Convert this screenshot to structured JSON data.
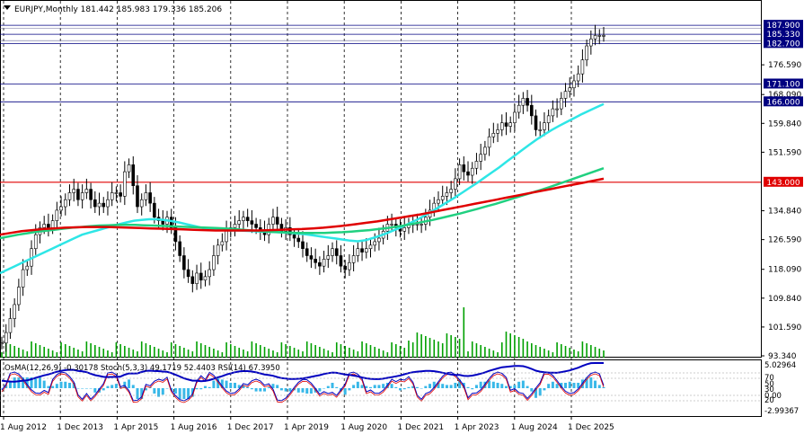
{
  "header": {
    "symbol": "EURJPY,Monthly",
    "ohlc": "181.442 185.983 179.336 185.206"
  },
  "sub_header": {
    "indicators": "OsMA(12,26,9) -0.30178   Stoch(5,3,3) 49.1719 52.4403   RSI(14) 67.3950"
  },
  "colors": {
    "background": "#ffffff",
    "candles": "#000000",
    "volume": "#00a000",
    "ema_fast": "#2ee6e6",
    "ema_mid": "#20d080",
    "ema_slow": "#e00000",
    "level_line": "#000080",
    "red_level": "#e00000",
    "osma": "#38b8e8",
    "stoch_main": "#0000c0",
    "stoch_signal": "#e00000",
    "rsi": "#8000c0"
  },
  "chart_data": {
    "type": "candlestick",
    "title": "EURJPY,Monthly",
    "ylim": [
      93.34,
      190.5
    ],
    "price_ticks": [
      "187.900",
      "185.330",
      "182.700",
      "176.590",
      "171.100",
      "168.090",
      "166.000",
      "159.840",
      "151.590",
      "143.000",
      "134.840",
      "126.590",
      "118.090",
      "109.840",
      "101.590",
      "93.340"
    ],
    "x_ticks": [
      "1 Aug 2012",
      "1 Dec 2013",
      "1 Apr 2015",
      "1 Aug 2016",
      "1 Dec 2017",
      "1 Apr 2019",
      "1 Aug 2020",
      "1 Dec 2021",
      "1 Apr 2023",
      "1 Aug 2024",
      "1 Dec 2025"
    ],
    "horizontal_levels": [
      {
        "label": "187.900",
        "value": 187.9
      },
      {
        "label": "185.330",
        "value": 185.33
      },
      {
        "label": "182.700",
        "value": 182.7
      },
      {
        "label": "171.100",
        "value": 171.1
      },
      {
        "label": "166.000",
        "value": 166.0
      },
      {
        "label": "143.000",
        "value": 143.0,
        "highlight": true
      }
    ],
    "close_series": [
      97,
      100,
      104,
      108,
      113,
      118,
      119,
      124,
      128,
      130,
      131,
      130,
      132,
      135,
      136,
      138,
      140,
      141,
      138,
      140,
      141,
      138,
      136,
      137,
      136,
      138,
      140,
      140,
      139,
      146,
      148,
      142,
      136,
      138,
      140,
      137,
      133,
      132,
      131,
      133,
      130,
      126,
      122,
      118,
      116,
      114,
      117,
      115,
      116,
      118,
      122,
      125,
      126,
      129,
      130,
      131,
      132,
      133,
      132,
      131,
      130,
      129,
      128,
      131,
      133,
      131,
      129,
      130,
      128,
      127,
      126,
      124,
      122,
      121,
      120,
      119,
      121,
      122,
      124,
      122,
      119,
      118,
      120,
      122,
      124,
      123,
      124,
      125,
      126,
      127,
      129,
      131,
      131,
      130,
      129,
      130,
      131,
      131,
      131,
      131,
      133,
      135,
      137,
      138,
      139,
      140,
      141,
      144,
      148,
      146,
      145,
      147,
      149,
      151,
      153,
      156,
      157,
      158,
      160,
      159,
      160,
      163,
      165,
      167,
      165,
      162,
      158,
      158,
      160,
      162,
      164,
      164,
      167,
      169,
      170,
      172,
      174,
      178,
      182,
      184,
      185,
      185,
      185
    ],
    "series": [
      {
        "name": "EMA fast",
        "values": [
          117,
          118,
          119,
          120,
          121,
          122,
          123,
          124,
          125,
          126,
          127,
          128,
          128.6,
          129.2,
          129.8,
          130.4,
          131,
          131.5,
          132,
          132.2,
          132.4,
          132.4,
          132.2,
          131.9,
          131.5,
          131,
          130.5,
          130,
          129.6,
          129.4,
          129.3,
          129.2,
          129.2,
          129.1,
          129,
          128.9,
          128.8,
          128.7,
          128.6,
          128.5,
          128.3,
          128.1,
          127.8,
          127.5,
          127.2,
          126.9,
          126.6,
          126.3,
          126.1,
          126.4,
          127,
          127.7,
          128.5,
          129.4,
          130.3,
          131.3,
          132.3,
          133.5,
          134.7,
          136,
          137.3,
          138.6,
          140,
          141.4,
          142.8,
          144.3,
          145.8,
          147.3,
          148.9,
          150.5,
          152.1,
          153.7,
          155.2,
          156.6,
          157.9,
          159.1,
          160.2,
          161.3,
          162.4,
          163.4,
          164.4,
          165.4
        ]
      },
      {
        "name": "EMA mid",
        "values": [
          127,
          127.5,
          128,
          128.4,
          128.8,
          129.1,
          129.4,
          129.7,
          130,
          130.2,
          130.4,
          130.6,
          130.7,
          130.8,
          130.8,
          130.8,
          130.7,
          130.6,
          130.5,
          130.4,
          130.3,
          130.2,
          130.1,
          130,
          129.9,
          129.8,
          129.6,
          129.4,
          129.2,
          129,
          128.8,
          128.7,
          128.6,
          128.5,
          128.5,
          128.5,
          128.5,
          128.6,
          128.7,
          128.9,
          129.1,
          129.3,
          129.6,
          129.9,
          130.3,
          130.7,
          131.2,
          131.7,
          132.2,
          132.8,
          133.4,
          134,
          134.7,
          135.4,
          136.1,
          136.8,
          137.6,
          138.4,
          139.2,
          140,
          140.8,
          141.6,
          142.5,
          143.4,
          144.3,
          145.2,
          146.1,
          147
        ]
      },
      {
        "name": "EMA slow",
        "values": [
          128,
          128.5,
          129,
          129.3,
          129.6,
          129.8,
          130,
          130.1,
          130.2,
          130.2,
          130.2,
          130.1,
          130,
          129.9,
          129.8,
          129.7,
          129.6,
          129.5,
          129.4,
          129.3,
          129.2,
          129.2,
          129.2,
          129.2,
          129.2,
          129.3,
          129.4,
          129.5,
          129.6,
          129.8,
          130,
          130.3,
          130.6,
          131,
          131.4,
          131.8,
          132.3,
          132.8,
          133.3,
          133.8,
          134.4,
          135,
          135.6,
          136.2,
          136.8,
          137.4,
          138,
          138.6,
          139.2,
          139.8,
          140.4,
          141,
          141.6,
          142.2,
          142.8,
          143.4,
          144
        ]
      }
    ]
  }
}
